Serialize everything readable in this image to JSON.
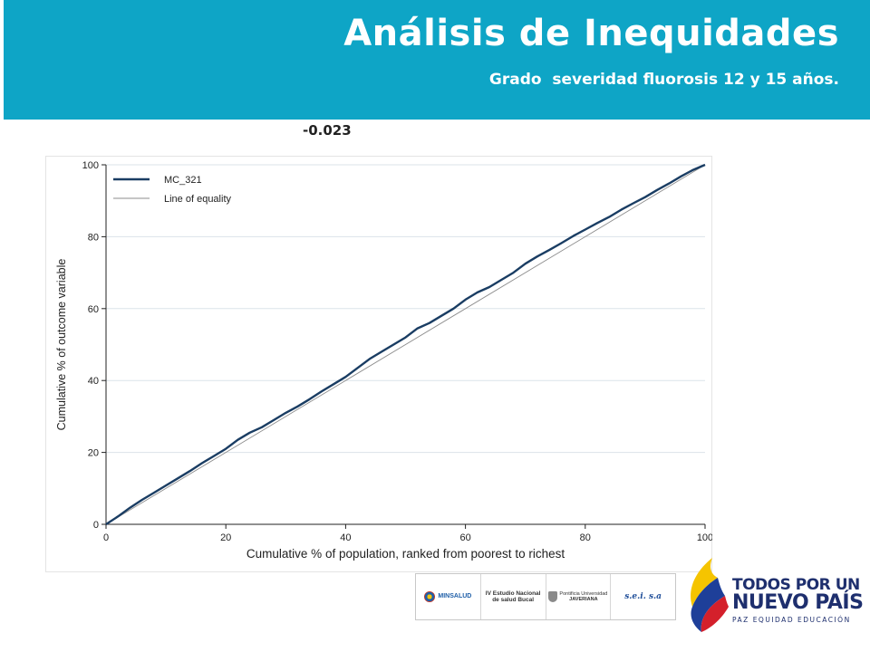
{
  "slide": {
    "title": "Análisis de Inequidades",
    "subtitle": "Grado  severidad fluorosis 12 y 15 años.",
    "index_value": "-0.023",
    "header_color": "#0ea5c6"
  },
  "chart_data": {
    "type": "line",
    "xlabel": "Cumulative % of population, ranked from poorest to richest",
    "ylabel": "Cumulative % of outcome variable",
    "xlim": [
      0,
      100
    ],
    "ylim": [
      0,
      100
    ],
    "xticks": [
      0,
      20,
      40,
      60,
      80,
      100
    ],
    "yticks": [
      0,
      20,
      40,
      60,
      80,
      100
    ],
    "grid": "horizontal",
    "legend_position": "top-left",
    "series": [
      {
        "name": "MC_321",
        "color": "#1a3d63",
        "x": [
          0,
          2,
          4,
          6,
          8,
          10,
          12,
          14,
          16,
          18,
          20,
          22,
          24,
          26,
          28,
          30,
          32,
          34,
          36,
          38,
          40,
          42,
          44,
          46,
          48,
          50,
          52,
          54,
          56,
          58,
          60,
          62,
          64,
          66,
          68,
          70,
          72,
          74,
          76,
          78,
          80,
          82,
          84,
          86,
          88,
          90,
          92,
          94,
          96,
          98,
          100
        ],
        "y": [
          0,
          2.2,
          4.6,
          6.8,
          8.8,
          10.8,
          12.8,
          14.8,
          17.0,
          19.0,
          21.0,
          23.5,
          25.5,
          27.0,
          29.0,
          31.0,
          32.8,
          34.8,
          37.0,
          39.0,
          41.0,
          43.5,
          46.0,
          48.0,
          50.0,
          52.0,
          54.5,
          56.0,
          58.0,
          60.0,
          62.5,
          64.5,
          66.0,
          68.0,
          70.0,
          72.5,
          74.5,
          76.3,
          78.2,
          80.2,
          82.0,
          83.8,
          85.5,
          87.5,
          89.3,
          91.0,
          93.0,
          94.8,
          96.8,
          98.6,
          100
        ]
      },
      {
        "name": "Line of equality",
        "color": "#8c8c8c",
        "x": [
          0,
          100
        ],
        "y": [
          0,
          100
        ]
      }
    ]
  },
  "logos": {
    "ministry": "MINSALUD",
    "study_line1": "IV Estudio Nacional",
    "study_line2": "de salud Bucal",
    "university_line1": "Pontificia Universidad",
    "university_line2": "JAVERIANA",
    "sei": "s.e.i. s.a"
  },
  "brand": {
    "line1": "TODOS POR UN",
    "line2": "NUEVO PAÍS",
    "line3": "PAZ  EQUIDAD  EDUCACIÓN"
  }
}
